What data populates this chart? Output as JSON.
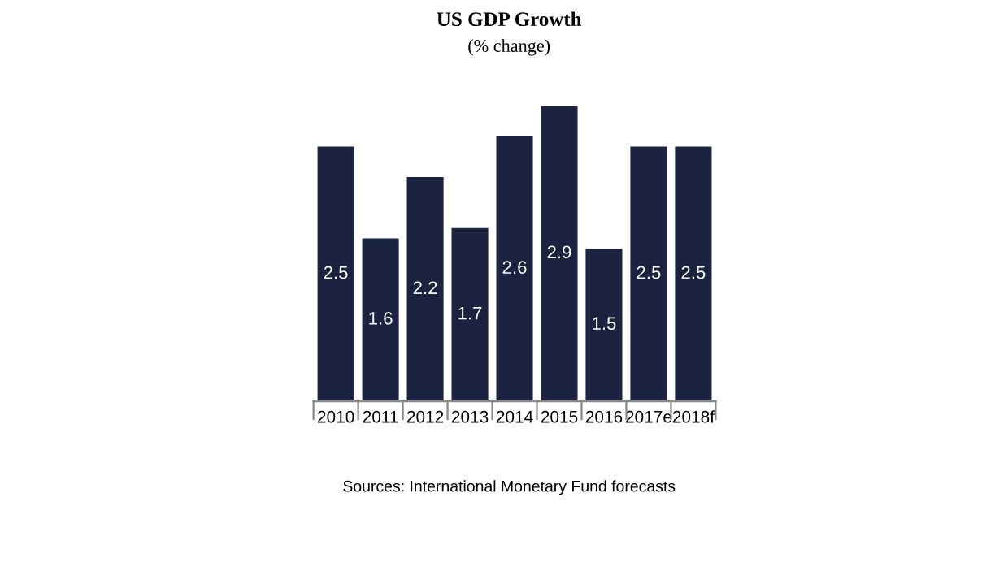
{
  "chart_data": {
    "type": "bar",
    "title": "US GDP Growth",
    "subtitle": "(% change)",
    "categories": [
      "2010",
      "2011",
      "2012",
      "2013",
      "2014",
      "2015",
      "2016",
      "2017e",
      "2018f"
    ],
    "values": [
      2.5,
      1.6,
      2.2,
      1.7,
      2.6,
      2.9,
      1.5,
      2.5,
      2.5
    ],
    "color": "#1b2340",
    "data_labels": true,
    "grid": false,
    "legend": false,
    "annotations": [
      "Sources: International Monetary Fund forecasts"
    ]
  }
}
